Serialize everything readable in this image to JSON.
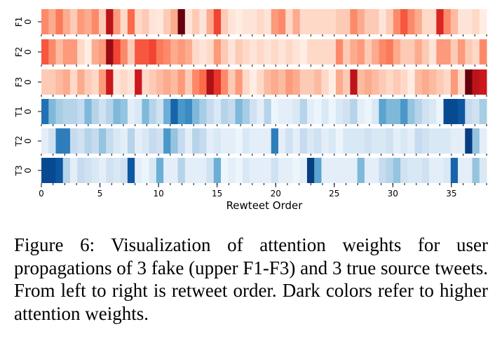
{
  "chart_data": {
    "type": "heatmap",
    "xlabel": "Rewteet Order",
    "x_ticks": [
      0,
      5,
      10,
      15,
      20,
      25,
      30,
      35
    ],
    "x_range": [
      0,
      38
    ],
    "y_tick_value": "0",
    "colors": {
      "fake": "#cb181d",
      "true": "#08519c"
    },
    "rows": [
      {
        "label": "F1",
        "palette": "Reds",
        "values": [
          0.4,
          0.3,
          0.45,
          0.3,
          0.2,
          0.35,
          0.3,
          0.4,
          0.2,
          0.8,
          0.35,
          0.15,
          0.5,
          0.15,
          0.2,
          0.1,
          0.08,
          0.2,
          0.3,
          1.0,
          0.1,
          0.2,
          0.1,
          0.3,
          0.6,
          0.2,
          0.1,
          0.05,
          0.1,
          0.1,
          0.15,
          0.1,
          0.35,
          0.4,
          0.15,
          0.3,
          0.15,
          0.15,
          0.15,
          0.15,
          0.15,
          0.2,
          0.2,
          0.4,
          0.3,
          0.2,
          0.2,
          0.1,
          0.2,
          0.4,
          0.55,
          0.4,
          0.3,
          0.15,
          0.15,
          0.7,
          0.4,
          0.25,
          0.1,
          0.1,
          0.15,
          0.05
        ]
      },
      {
        "label": "F2",
        "palette": "Reds",
        "values": [
          0.55,
          0.4,
          0.25,
          0.35,
          0.35,
          0.15,
          0.05,
          0.3,
          0.35,
          0.9,
          0.6,
          0.4,
          0.2,
          0.55,
          0.55,
          0.6,
          0.45,
          0.4,
          0.3,
          0.35,
          0.3,
          0.15,
          0.1,
          0.15,
          0.35,
          0.2,
          0.1,
          0.2,
          0.15,
          0.1,
          0.15,
          0.1,
          0.15,
          0.1,
          0.15,
          0.1,
          0.05,
          0.15,
          0.15,
          0.15,
          0.15,
          0.4,
          0.2,
          0.3,
          0.35,
          0.2,
          0.3,
          0.4,
          0.45,
          0.3,
          0.2,
          0.2,
          0.3,
          0.2,
          0.1,
          0.35,
          0.35,
          0.2,
          0.35,
          0.2,
          0.15,
          0.4
        ]
      },
      {
        "label": "F3",
        "palette": "Reds",
        "values": [
          0.2,
          0.2,
          0.25,
          0.3,
          0.15,
          0.3,
          0.2,
          0.15,
          0.35,
          0.75,
          0.1,
          0.15,
          0.1,
          0.75,
          0.15,
          0.2,
          0.25,
          0.3,
          0.25,
          0.35,
          0.2,
          0.4,
          0.5,
          0.85,
          0.65,
          0.4,
          0.2,
          0.35,
          0.15,
          0.05,
          0.15,
          0.25,
          0.3,
          0.25,
          0.35,
          0.3,
          0.2,
          0.2,
          0.25,
          0.15,
          0.05,
          0.3,
          0.2,
          0.8,
          0.25,
          0.3,
          0.25,
          0.2,
          0.15,
          0.2,
          0.15,
          0.05,
          0.25,
          0.3,
          0.25,
          0.2,
          0.15,
          0.35,
          0.15,
          1.0,
          0.8,
          0.75
        ]
      },
      {
        "label": "T1",
        "palette": "Blues",
        "values": [
          0.75,
          0.45,
          0.35,
          0.3,
          0.3,
          0.25,
          0.45,
          0.3,
          0.2,
          0.3,
          0.45,
          0.4,
          0.1,
          0.15,
          0.45,
          0.3,
          0.2,
          0.5,
          0.8,
          0.6,
          0.65,
          0.45,
          0.35,
          0.25,
          0.15,
          0.3,
          0.25,
          0.45,
          0.35,
          0.2,
          0.1,
          0.3,
          0.05,
          0.1,
          0.1,
          0.15,
          0.3,
          0.1,
          0.05,
          0.15,
          0.05,
          0.15,
          0.2,
          0.3,
          0.1,
          0.05,
          0.15,
          0.55,
          0.45,
          0.45,
          0.6,
          0.4,
          0.3,
          0.2,
          0.15,
          0.05,
          0.9,
          0.9,
          0.85,
          0.25,
          0.2,
          0.35
        ]
      },
      {
        "label": "T2",
        "palette": "Blues",
        "values": [
          0.1,
          0.2,
          0.7,
          0.7,
          0.25,
          0.2,
          0.3,
          0.25,
          0.4,
          0.25,
          0.15,
          0.1,
          0.3,
          0.1,
          0.15,
          0.25,
          0.2,
          0.6,
          0.4,
          0.25,
          0.1,
          0.3,
          0.25,
          0.1,
          0.15,
          0.1,
          0.1,
          0.05,
          0.15,
          0.1,
          0.1,
          0.1,
          0.7,
          0.1,
          0.2,
          0.1,
          0.25,
          0.15,
          0.2,
          0.1,
          0.15,
          0.05,
          0.15,
          0.15,
          0.15,
          0.2,
          0.15,
          0.15,
          0.2,
          0.1,
          0.15,
          0.1,
          0.25,
          0.2,
          0.15,
          0.15,
          0.15,
          0.1,
          0.1,
          0.95,
          0.4,
          0.1
        ]
      },
      {
        "label": "T3",
        "palette": "Blues",
        "values": [
          0.9,
          0.9,
          0.85,
          0.3,
          0.1,
          0.25,
          0.2,
          0.15,
          0.1,
          0.2,
          0.15,
          0.2,
          0.85,
          0.1,
          0.05,
          0.15,
          0.5,
          0.1,
          0.1,
          0.3,
          0.1,
          0.1,
          0.1,
          0.2,
          0.5,
          0.05,
          0.1,
          0.05,
          0.15,
          0.1,
          0.1,
          0.1,
          0.2,
          0.1,
          0.1,
          0.05,
          0.1,
          0.95,
          0.55,
          0.1,
          0.1,
          0.1,
          0.1,
          0.1,
          0.45,
          0.1,
          0.1,
          0.25,
          0.3,
          0.4,
          0.2,
          0.15,
          0.15,
          0.2,
          0.1,
          0.1,
          0.15,
          0.8,
          0.1,
          0.1,
          0.4,
          0.15
        ]
      }
    ]
  },
  "caption": "Figure 6: Visualization of attention weights for user propagations of 3 fake (upper F1-F3) and 3 true source tweets. From left to right is retweet order. Dark colors refer to higher attention weights."
}
